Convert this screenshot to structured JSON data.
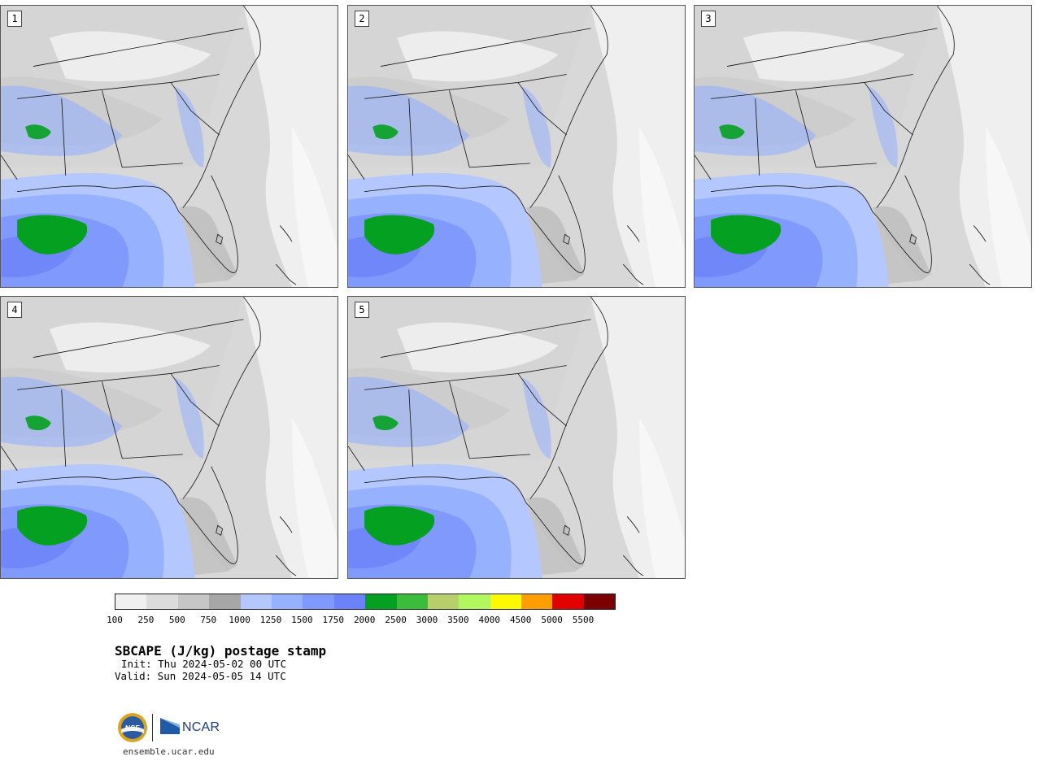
{
  "panels": [
    {
      "number": "1"
    },
    {
      "number": "2"
    },
    {
      "number": "3"
    },
    {
      "number": "4"
    },
    {
      "number": "5"
    }
  ],
  "legend": {
    "bins": [
      {
        "color": "#f0f0f0",
        "label": "100"
      },
      {
        "color": "#dcdcdc",
        "label": "250"
      },
      {
        "color": "#c6c6c6",
        "label": "500"
      },
      {
        "color": "#a6a6a6",
        "label": "750"
      },
      {
        "color": "#b4c8ff",
        "label": "1000"
      },
      {
        "color": "#96b1fe",
        "label": "1250"
      },
      {
        "color": "#7f99fd",
        "label": "1500"
      },
      {
        "color": "#6b82f8",
        "label": "1750"
      },
      {
        "color": "#04a022",
        "label": "2000"
      },
      {
        "color": "#3cbc3c",
        "label": "2500"
      },
      {
        "color": "#b7d06b",
        "label": "3000"
      },
      {
        "color": "#b2f75f",
        "label": "3500"
      },
      {
        "color": "#fef800",
        "label": "4000"
      },
      {
        "color": "#fe9e00",
        "label": "4500"
      },
      {
        "color": "#e30000",
        "label": "5000"
      },
      {
        "color": "#7c0000",
        "label": "5500"
      }
    ]
  },
  "title": "SBCAPE (J/kg) postage stamp",
  "init": "Init: Thu 2024-05-02 00 UTC",
  "valid": "Valid: Sun 2024-05-05 14 UTC",
  "branding": {
    "nsf_label": "NSF",
    "ncar_label": "NCAR",
    "url": "ensemble.ucar.edu"
  }
}
